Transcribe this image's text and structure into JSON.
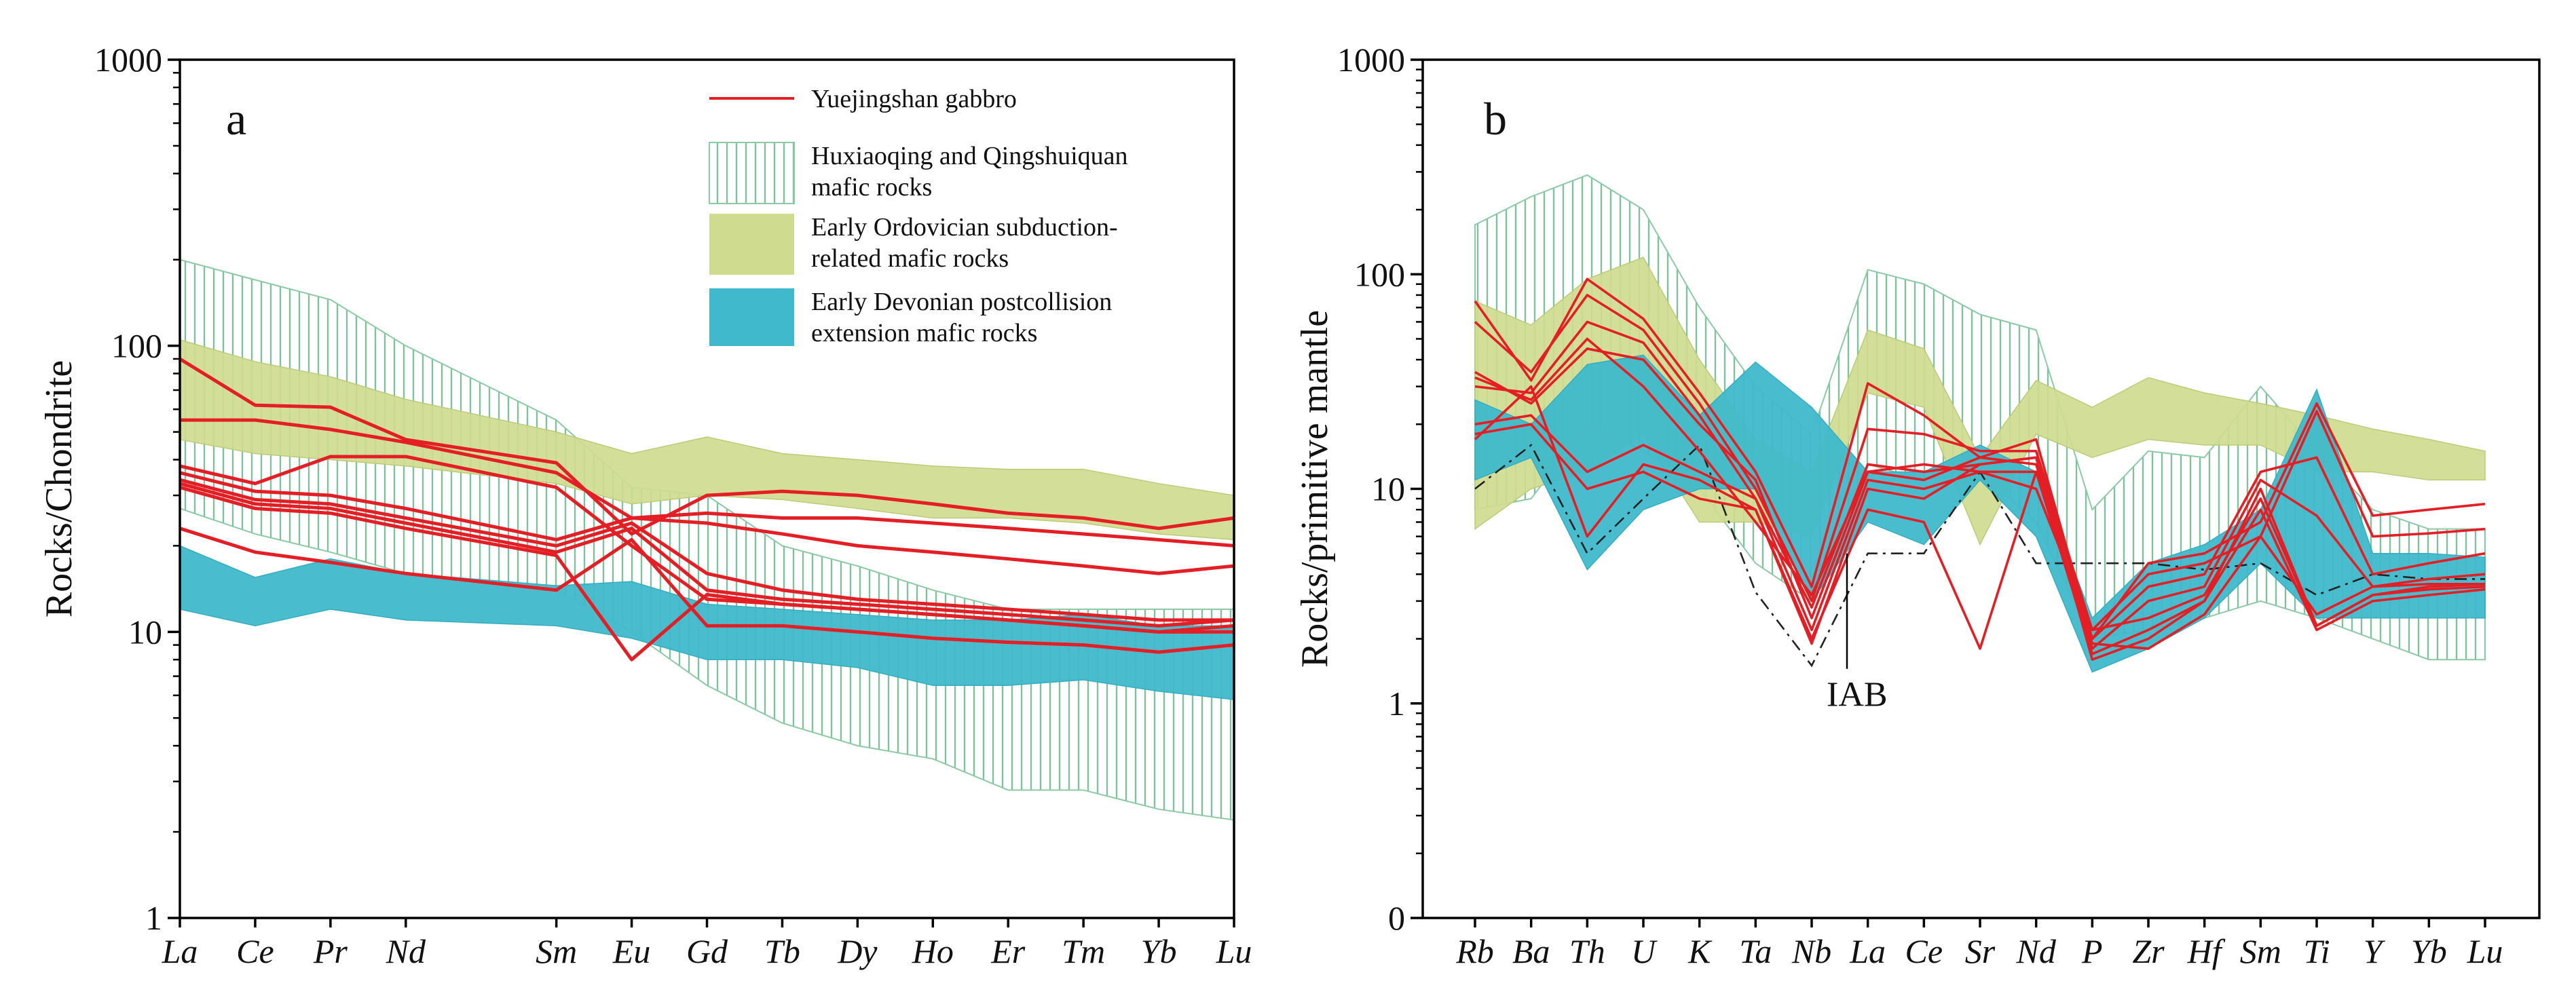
{
  "chart_data": [
    {
      "type": "line",
      "panel_label": "a",
      "ylabel": "Rocks/Chondrite",
      "yscale": "log",
      "ylim": [
        1,
        1000
      ],
      "yticks": [
        1,
        10,
        100,
        1000
      ],
      "categories": [
        "La",
        "Ce",
        "Pr",
        "Nd",
        "Sm",
        "Eu",
        "Gd",
        "Tb",
        "Dy",
        "Ho",
        "Er",
        "Tm",
        "Yb",
        "Lu"
      ],
      "category_positions": [
        0,
        1,
        2,
        3,
        5,
        6,
        7,
        8,
        9,
        10,
        11,
        12,
        13,
        14
      ],
      "legend_position": "top-right",
      "legend": [
        {
          "label": "Yuejingshan gabbro",
          "style": "red-line"
        },
        {
          "label": "Huxiaoqing and Qingshuiquan mafic rocks",
          "style": "green-hatch"
        },
        {
          "label": "Early Ordovician subduction-related mafic rocks",
          "style": "olive-fill"
        },
        {
          "label": "Early Devonian postcollision extension  mafic rocks",
          "style": "cyan-fill"
        }
      ],
      "bands": [
        {
          "name": "Huxiaoqing and Qingshuiquan mafic rocks",
          "upper": [
            200,
            170,
            145,
            100,
            55,
            32,
            30,
            20,
            17,
            14,
            12,
            12,
            12,
            12
          ],
          "lower": [
            27,
            22,
            19,
            16,
            14,
            10,
            6.5,
            4.8,
            4,
            3.6,
            2.8,
            2.8,
            2.4,
            2.2
          ]
        },
        {
          "name": "Early Ordovician subduction-related mafic rocks",
          "upper": [
            105,
            88,
            78,
            65,
            50,
            42,
            48,
            42,
            40,
            38,
            37,
            37,
            33,
            30
          ],
          "lower": [
            47,
            42,
            40,
            38,
            33,
            28,
            30,
            29,
            27,
            25,
            25,
            24,
            22,
            21
          ]
        },
        {
          "name": "Early Devonian postcollision extension  mafic rocks",
          "upper": [
            20,
            15.5,
            18,
            16,
            14.5,
            15,
            12.5,
            12,
            11.5,
            11,
            11,
            11.5,
            10.5,
            10.5
          ],
          "lower": [
            12,
            10.5,
            12,
            11,
            10.5,
            9.5,
            8,
            8,
            7.5,
            6.5,
            6.5,
            6.8,
            6.2,
            5.8
          ]
        }
      ],
      "series": [
        {
          "values": [
            90,
            62,
            61,
            47,
            39,
            22,
            30,
            31,
            30,
            28,
            26,
            25,
            23,
            25
          ]
        },
        {
          "values": [
            55,
            55,
            51,
            46,
            36,
            25,
            26,
            25,
            25,
            24,
            23,
            22,
            21,
            20
          ]
        },
        {
          "values": [
            36,
            31,
            30,
            27,
            21,
            25,
            24,
            22,
            20,
            19,
            18,
            17,
            16,
            17
          ]
        },
        {
          "values": [
            34,
            29,
            28,
            25,
            20,
            24,
            16,
            14,
            13,
            12.5,
            12,
            11.5,
            11,
            11
          ]
        },
        {
          "values": [
            33,
            28,
            27,
            24,
            19,
            23,
            14,
            13,
            12.5,
            12,
            11.5,
            11,
            10.5,
            11
          ]
        },
        {
          "values": [
            32,
            27,
            26,
            23,
            18.5,
            8,
            13.5,
            12.5,
            12,
            11.5,
            11,
            10.5,
            10,
            10.5
          ]
        },
        {
          "values": [
            23,
            19,
            17.5,
            16,
            14,
            21,
            10.5,
            10.5,
            10,
            9.5,
            9.2,
            9,
            8.5,
            9
          ]
        },
        {
          "values": [
            38,
            33,
            41,
            41,
            32,
            20,
            13,
            12.5,
            12,
            11.5,
            11,
            10.5,
            10,
            10
          ]
        }
      ]
    },
    {
      "type": "line",
      "panel_label": "b",
      "ylabel": "Rocks/primitive mantle",
      "yscale": "log",
      "ylim": [
        0.1,
        1000
      ],
      "yticks": [
        0.1,
        1,
        10,
        100,
        1000
      ],
      "ytick_labels": [
        "0",
        "1",
        "10",
        "100",
        "1000"
      ],
      "categories": [
        "Rb",
        "Ba",
        "Th",
        "U",
        "K",
        "Ta",
        "Nb",
        "La",
        "Ce",
        "Sr",
        "Nd",
        "P",
        "Zr",
        "Hf",
        "Sm",
        "Ti",
        "Y",
        "Yb",
        "Lu"
      ],
      "annotations": [
        {
          "text": "IAB",
          "points_to": "IAB reference line at Nb"
        }
      ],
      "bands": [
        {
          "name": "Huxiaoqing and Qingshuiquan mafic rocks",
          "upper": [
            170,
            230,
            290,
            200,
            70,
            30,
            18,
            105,
            90,
            65,
            55,
            8,
            15,
            14,
            30,
            15,
            8,
            6.5,
            6.5
          ],
          "lower": [
            8,
            9,
            20,
            15,
            10,
            4.5,
            3,
            13,
            11,
            12,
            7,
            2,
            2.2,
            2.5,
            3,
            2.5,
            2,
            1.6,
            1.6
          ]
        },
        {
          "name": "Early Ordovician subduction-related mafic rocks",
          "upper": [
            75,
            58,
            95,
            120,
            40,
            17,
            12,
            55,
            45,
            14,
            32,
            24,
            33,
            28,
            25,
            22,
            19,
            17,
            15
          ],
          "lower": [
            6.5,
            10,
            12,
            18,
            7,
            7,
            6,
            28,
            24,
            5.5,
            18,
            14,
            17,
            16,
            16,
            12,
            12,
            11,
            11
          ]
        },
        {
          "name": "Early Devonian postcollision extension  mafic rocks",
          "upper": [
            26,
            20,
            38,
            42,
            22,
            39,
            24,
            12,
            12,
            16,
            12,
            2.5,
            4.5,
            5.5,
            8,
            29,
            5,
            5,
            4.8
          ],
          "lower": [
            11,
            14,
            4.2,
            8,
            10,
            10,
            3,
            7,
            5.5,
            11,
            6,
            1.4,
            1.8,
            2.5,
            4.5,
            2.5,
            2.5,
            2.5,
            2.5
          ]
        }
      ],
      "series": [
        {
          "values": [
            75,
            32,
            95,
            62,
            28,
            12,
            3.5,
            31,
            22,
            14,
            17,
            2,
            4.5,
            5,
            7,
            25,
            7.5,
            8,
            8.5
          ]
        },
        {
          "values": [
            60,
            35,
            80,
            55,
            25,
            10,
            3,
            19,
            18,
            15,
            15,
            2.2,
            4,
            4.5,
            6,
            23,
            6,
            6.2,
            6.5
          ]
        },
        {
          "values": [
            30,
            28,
            60,
            48,
            22,
            9,
            2.8,
            13,
            12,
            13,
            14,
            2,
            3.5,
            4,
            12,
            14,
            4,
            4.5,
            5
          ]
        },
        {
          "values": [
            35,
            25,
            45,
            40,
            20,
            11,
            2.5,
            12,
            11,
            14,
            13,
            1.8,
            3,
            3.5,
            11,
            7.5,
            3.5,
            3.8,
            4
          ]
        },
        {
          "values": [
            20,
            22,
            12,
            16,
            12,
            9,
            2.2,
            11,
            10,
            12,
            12,
            1.7,
            2.2,
            3,
            10,
            2.3,
            3.2,
            3.5,
            3.6
          ]
        },
        {
          "values": [
            18,
            20,
            10,
            12,
            9,
            8,
            1.9,
            10,
            9,
            13,
            14,
            1.6,
            2,
            3,
            8,
            2.2,
            3,
            3.2,
            3.4
          ]
        },
        {
          "values": [
            17,
            30,
            6,
            13,
            11,
            8,
            2,
            8,
            7,
            1.8,
            12,
            1.9,
            1.8,
            2.6,
            6,
            2.6,
            3.5,
            3.6,
            3.6
          ]
        },
        {
          "values": [
            33,
            26,
            50,
            30,
            15,
            7,
            3.2,
            12,
            13,
            12,
            10,
            2.2,
            2.5,
            3.2,
            9,
            2.3,
            3.2,
            3.4,
            3.5
          ]
        }
      ],
      "reference_lines": [
        {
          "name": "IAB",
          "values": [
            10,
            16,
            5,
            9,
            16,
            3.3,
            1.5,
            5,
            5,
            12,
            4.5,
            4.5,
            4.5,
            4.2,
            4.5,
            3.2,
            4,
            3.8,
            3.8
          ]
        }
      ]
    }
  ]
}
